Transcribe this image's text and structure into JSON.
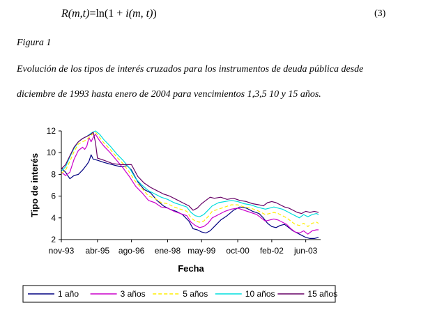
{
  "equation": {
    "lhs": "R(m,t)",
    "rhs_fn": "ln",
    "rhs_open": "(1 + ",
    "rhs_var": "i",
    "rhs_args": "(m, t)",
    "rhs_close": ")",
    "eq_sign": "=",
    "number": "(3)"
  },
  "figure": {
    "label": "Figura 1",
    "caption_line1": "Evolución de los tipos de interés cruzados para los instrumentos de deuda pública desde",
    "caption_line2": "diciembre de 1993 hasta enero de 2004 para vencimientos 1,3,5 10 y 15 años."
  },
  "chart_data": {
    "type": "line",
    "xlabel": "Fecha",
    "ylabel": "Tipo de interés",
    "ylim": [
      2,
      12
    ],
    "yticks": [
      2,
      4,
      6,
      8,
      10,
      12
    ],
    "xticklabels": [
      "nov-93",
      "abr-95",
      "ago-96",
      "ene-98",
      "may-99",
      "oct-00",
      "feb-02",
      "jun-03"
    ],
    "xtick_months": [
      0,
      17,
      33,
      50,
      66,
      83,
      99,
      115
    ],
    "x_month_range": [
      0,
      122
    ],
    "grid": false,
    "legend_position": "bottom",
    "series": [
      {
        "name": "1 año",
        "color": "#000080",
        "dash": "solid",
        "points": [
          [
            0,
            8.6
          ],
          [
            2,
            8.2
          ],
          [
            4,
            7.6
          ],
          [
            6,
            7.9
          ],
          [
            8,
            8.0
          ],
          [
            10,
            8.4
          ],
          [
            12,
            8.9
          ],
          [
            13,
            9.2
          ],
          [
            14,
            9.8
          ],
          [
            15,
            9.4
          ],
          [
            17,
            9.3
          ],
          [
            20,
            9.1
          ],
          [
            24,
            8.9
          ],
          [
            28,
            8.7
          ],
          [
            31,
            8.8
          ],
          [
            33,
            8.4
          ],
          [
            36,
            7.3
          ],
          [
            39,
            6.6
          ],
          [
            42,
            6.3
          ],
          [
            45,
            5.6
          ],
          [
            48,
            5.1
          ],
          [
            51,
            4.8
          ],
          [
            54,
            4.6
          ],
          [
            57,
            4.3
          ],
          [
            60,
            3.7
          ],
          [
            62,
            3.0
          ],
          [
            64,
            2.9
          ],
          [
            66,
            2.7
          ],
          [
            68,
            2.6
          ],
          [
            70,
            2.8
          ],
          [
            72,
            3.2
          ],
          [
            75,
            3.8
          ],
          [
            78,
            4.2
          ],
          [
            81,
            4.7
          ],
          [
            84,
            5.0
          ],
          [
            87,
            4.9
          ],
          [
            90,
            4.6
          ],
          [
            93,
            4.4
          ],
          [
            95,
            4.0
          ],
          [
            97,
            3.5
          ],
          [
            99,
            3.2
          ],
          [
            101,
            3.1
          ],
          [
            103,
            3.3
          ],
          [
            105,
            3.4
          ],
          [
            107,
            3.1
          ],
          [
            109,
            2.8
          ],
          [
            111,
            2.6
          ],
          [
            113,
            2.4
          ],
          [
            115,
            2.2
          ],
          [
            117,
            2.1
          ],
          [
            119,
            2.1
          ],
          [
            121,
            2.2
          ]
        ]
      },
      {
        "name": "3 años",
        "color": "#cc00cc",
        "dash": "solid",
        "points": [
          [
            0,
            8.2
          ],
          [
            2,
            7.9
          ],
          [
            4,
            8.2
          ],
          [
            6,
            9.4
          ],
          [
            8,
            10.2
          ],
          [
            10,
            10.5
          ],
          [
            11,
            10.3
          ],
          [
            12,
            10.6
          ],
          [
            13,
            11.4
          ],
          [
            14,
            11.0
          ],
          [
            15,
            11.4
          ],
          [
            16,
            11.7
          ],
          [
            18,
            11.1
          ],
          [
            20,
            10.6
          ],
          [
            23,
            10.0
          ],
          [
            26,
            9.3
          ],
          [
            29,
            8.6
          ],
          [
            32,
            7.8
          ],
          [
            35,
            6.9
          ],
          [
            38,
            6.3
          ],
          [
            41,
            5.6
          ],
          [
            44,
            5.4
          ],
          [
            47,
            5.0
          ],
          [
            50,
            4.9
          ],
          [
            53,
            4.6
          ],
          [
            56,
            4.4
          ],
          [
            59,
            4.2
          ],
          [
            61,
            3.6
          ],
          [
            63,
            3.3
          ],
          [
            65,
            3.1
          ],
          [
            67,
            3.2
          ],
          [
            69,
            3.5
          ],
          [
            71,
            4.0
          ],
          [
            74,
            4.3
          ],
          [
            77,
            4.6
          ],
          [
            80,
            4.8
          ],
          [
            83,
            4.9
          ],
          [
            86,
            4.7
          ],
          [
            89,
            4.5
          ],
          [
            92,
            4.3
          ],
          [
            94,
            4.0
          ],
          [
            96,
            3.7
          ],
          [
            98,
            3.8
          ],
          [
            100,
            3.9
          ],
          [
            102,
            3.8
          ],
          [
            104,
            3.6
          ],
          [
            106,
            3.4
          ],
          [
            108,
            3.0
          ],
          [
            110,
            2.7
          ],
          [
            112,
            2.6
          ],
          [
            114,
            2.8
          ],
          [
            116,
            2.5
          ],
          [
            118,
            2.8
          ],
          [
            120,
            2.9
          ],
          [
            121,
            2.9
          ]
        ]
      },
      {
        "name": "5 años",
        "color": "#ffee00",
        "dash": "dashed",
        "points": [
          [
            0,
            8.1
          ],
          [
            2,
            8.4
          ],
          [
            4,
            9.2
          ],
          [
            6,
            10.1
          ],
          [
            8,
            10.8
          ],
          [
            10,
            11.0
          ],
          [
            12,
            11.2
          ],
          [
            14,
            11.6
          ],
          [
            16,
            11.9
          ],
          [
            18,
            11.4
          ],
          [
            20,
            10.9
          ],
          [
            23,
            10.3
          ],
          [
            26,
            9.6
          ],
          [
            29,
            9.0
          ],
          [
            32,
            8.2
          ],
          [
            35,
            7.3
          ],
          [
            38,
            6.7
          ],
          [
            41,
            6.0
          ],
          [
            44,
            5.8
          ],
          [
            47,
            5.4
          ],
          [
            50,
            5.3
          ],
          [
            53,
            5.0
          ],
          [
            56,
            4.8
          ],
          [
            59,
            4.6
          ],
          [
            61,
            4.0
          ],
          [
            63,
            3.7
          ],
          [
            65,
            3.6
          ],
          [
            67,
            3.7
          ],
          [
            69,
            4.1
          ],
          [
            71,
            4.6
          ],
          [
            74,
            4.8
          ],
          [
            77,
            5.0
          ],
          [
            80,
            5.2
          ],
          [
            83,
            5.2
          ],
          [
            86,
            5.0
          ],
          [
            89,
            4.9
          ],
          [
            92,
            4.7
          ],
          [
            94,
            4.5
          ],
          [
            96,
            4.3
          ],
          [
            98,
            4.4
          ],
          [
            100,
            4.5
          ],
          [
            102,
            4.4
          ],
          [
            104,
            4.2
          ],
          [
            106,
            4.0
          ],
          [
            108,
            3.7
          ],
          [
            110,
            3.4
          ],
          [
            112,
            3.3
          ],
          [
            114,
            3.5
          ],
          [
            116,
            3.2
          ],
          [
            118,
            3.5
          ],
          [
            120,
            3.6
          ],
          [
            121,
            3.5
          ]
        ]
      },
      {
        "name": "10 años",
        "color": "#00dddd",
        "dash": "solid",
        "points": [
          [
            0,
            8.3
          ],
          [
            2,
            8.7
          ],
          [
            4,
            9.6
          ],
          [
            6,
            10.4
          ],
          [
            8,
            11.0
          ],
          [
            10,
            11.3
          ],
          [
            12,
            11.5
          ],
          [
            14,
            11.8
          ],
          [
            16,
            12.0
          ],
          [
            18,
            11.7
          ],
          [
            20,
            11.2
          ],
          [
            23,
            10.6
          ],
          [
            26,
            9.9
          ],
          [
            29,
            9.3
          ],
          [
            32,
            8.6
          ],
          [
            35,
            7.6
          ],
          [
            38,
            7.0
          ],
          [
            41,
            6.5
          ],
          [
            44,
            6.2
          ],
          [
            47,
            5.9
          ],
          [
            50,
            5.7
          ],
          [
            53,
            5.4
          ],
          [
            56,
            5.2
          ],
          [
            59,
            5.0
          ],
          [
            61,
            4.5
          ],
          [
            63,
            4.2
          ],
          [
            65,
            4.1
          ],
          [
            67,
            4.3
          ],
          [
            69,
            4.7
          ],
          [
            71,
            5.1
          ],
          [
            74,
            5.4
          ],
          [
            77,
            5.5
          ],
          [
            80,
            5.6
          ],
          [
            83,
            5.5
          ],
          [
            86,
            5.3
          ],
          [
            89,
            5.2
          ],
          [
            92,
            5.0
          ],
          [
            94,
            4.9
          ],
          [
            96,
            4.8
          ],
          [
            98,
            4.9
          ],
          [
            100,
            5.0
          ],
          [
            102,
            4.9
          ],
          [
            104,
            4.8
          ],
          [
            106,
            4.6
          ],
          [
            108,
            4.4
          ],
          [
            110,
            4.2
          ],
          [
            112,
            4.0
          ],
          [
            114,
            4.3
          ],
          [
            116,
            4.1
          ],
          [
            118,
            4.3
          ],
          [
            120,
            4.4
          ],
          [
            121,
            4.3
          ]
        ]
      },
      {
        "name": "15 años",
        "color": "#660066",
        "dash": "solid",
        "points": [
          [
            0,
            8.5
          ],
          [
            2,
            8.9
          ],
          [
            4,
            9.7
          ],
          [
            6,
            10.5
          ],
          [
            8,
            11.0
          ],
          [
            10,
            11.3
          ],
          [
            12,
            11.5
          ],
          [
            14,
            11.7
          ],
          [
            15,
            11.9
          ],
          [
            16,
            11.0
          ],
          [
            17,
            9.5
          ],
          [
            20,
            9.3
          ],
          [
            24,
            9.0
          ],
          [
            28,
            8.9
          ],
          [
            31,
            8.9
          ],
          [
            33,
            8.9
          ],
          [
            36,
            7.8
          ],
          [
            39,
            7.2
          ],
          [
            42,
            6.8
          ],
          [
            45,
            6.5
          ],
          [
            48,
            6.2
          ],
          [
            51,
            6.0
          ],
          [
            54,
            5.7
          ],
          [
            57,
            5.4
          ],
          [
            60,
            5.1
          ],
          [
            62,
            4.7
          ],
          [
            64,
            4.9
          ],
          [
            66,
            5.3
          ],
          [
            68,
            5.6
          ],
          [
            70,
            5.9
          ],
          [
            72,
            5.8
          ],
          [
            75,
            5.9
          ],
          [
            78,
            5.7
          ],
          [
            81,
            5.8
          ],
          [
            84,
            5.6
          ],
          [
            87,
            5.5
          ],
          [
            90,
            5.3
          ],
          [
            93,
            5.2
          ],
          [
            95,
            5.1
          ],
          [
            97,
            5.4
          ],
          [
            99,
            5.5
          ],
          [
            101,
            5.4
          ],
          [
            103,
            5.2
          ],
          [
            105,
            5.0
          ],
          [
            107,
            4.9
          ],
          [
            109,
            4.7
          ],
          [
            111,
            4.5
          ],
          [
            113,
            4.4
          ],
          [
            115,
            4.6
          ],
          [
            117,
            4.5
          ],
          [
            119,
            4.6
          ],
          [
            121,
            4.5
          ]
        ]
      }
    ]
  }
}
